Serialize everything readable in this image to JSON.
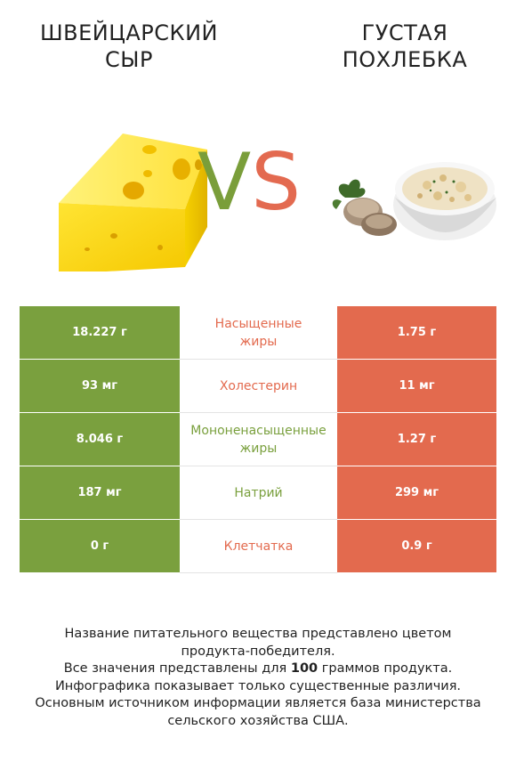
{
  "header": {
    "left_title": "ШВЕЙЦАРСКИЙ\nСЫР",
    "right_title": "ГУСТАЯ\nПОХЛЕБКА",
    "vs_v": "V",
    "vs_s": "S"
  },
  "colors": {
    "left_accent": "#7aa03e",
    "right_accent": "#e36a4e",
    "neutral_text": "#222222"
  },
  "chart_data": {
    "type": "table",
    "columns": [
      "Швейцарский сыр",
      "Густая похлебка"
    ],
    "rows": [
      {
        "nutrient": "Насыщенные\nжиры",
        "left": "18.227 г",
        "right": "1.75 г",
        "winner": "right",
        "color": "#e36a4e"
      },
      {
        "nutrient": "Холестерин",
        "left": "93 мг",
        "right": "11 мг",
        "winner": "right",
        "color": "#e36a4e"
      },
      {
        "nutrient": "Мононенасыщенные\nжиры",
        "left": "8.046 г",
        "right": "1.27 г",
        "winner": "left",
        "color": "#7aa03e"
      },
      {
        "nutrient": "Натрий",
        "left": "187 мг",
        "right": "299 мг",
        "winner": "left",
        "color": "#7aa03e"
      },
      {
        "nutrient": "Клетчатка",
        "left": "0 г",
        "right": "0.9 г",
        "winner": "right",
        "color": "#e36a4e"
      }
    ]
  },
  "footer": {
    "line1": "Название питательного вещества представлено цветом",
    "line2": "продукта-победителя.",
    "line3_pre": "Все значения представлены для ",
    "line3_num": "100",
    "line3_post": " граммов продукта.",
    "line4": "Инфографика показывает только существенные различия.",
    "line5": "Основным источником информации является база министерства",
    "line6": "сельского хозяйства США."
  },
  "icons": {
    "cheese": "cheese-icon",
    "soup": "chowder-bowl-icon"
  }
}
